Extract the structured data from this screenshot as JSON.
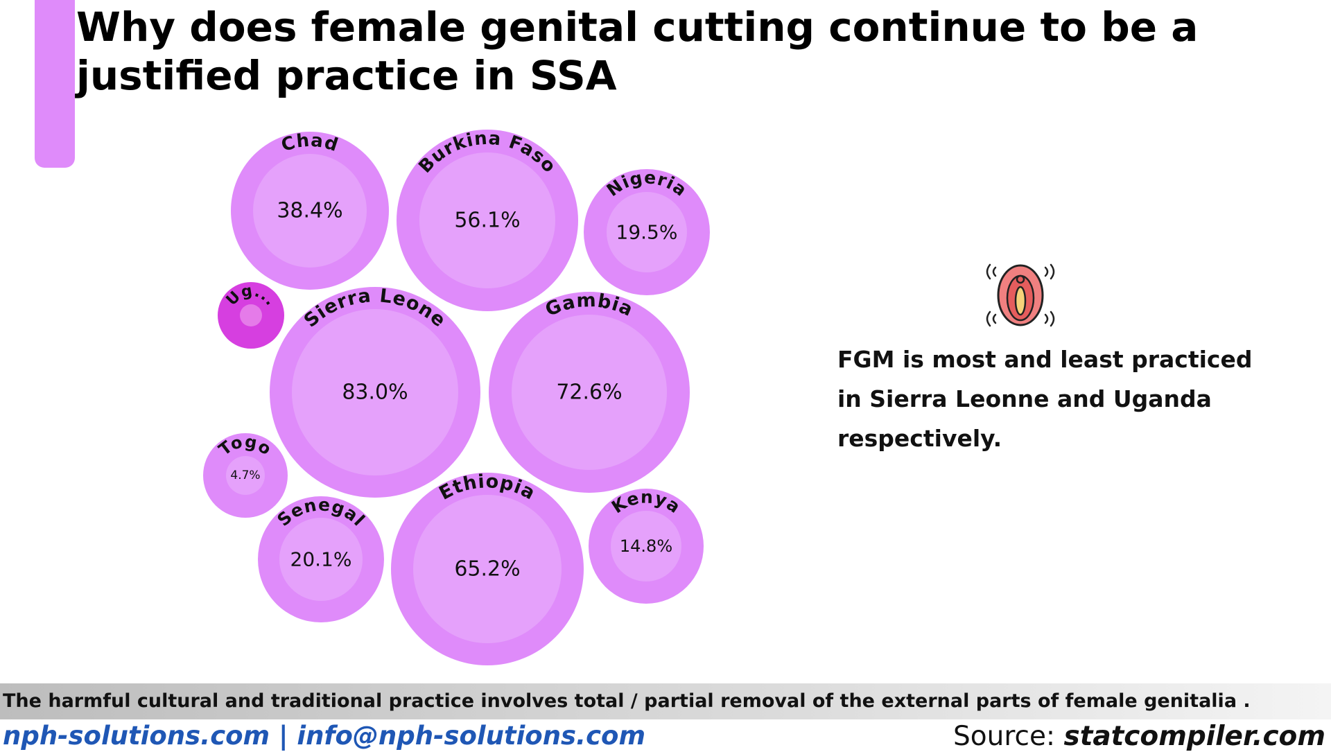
{
  "header": {
    "title": "Why does female genital cutting continue to be a justified practice in SSA"
  },
  "chart_data": {
    "type": "bubble",
    "unit": "%",
    "bubbles": [
      {
        "name": "Chad",
        "label": "Chad",
        "value": 38.4
      },
      {
        "name": "Burkina Faso",
        "label": "Burkina Faso",
        "value": 56.1
      },
      {
        "name": "Nigeria",
        "label": "Nigeria",
        "value": 19.5
      },
      {
        "name": "Uganda",
        "label": "Ug...",
        "value": null
      },
      {
        "name": "Sierra Leone",
        "label": "Sierra Leone",
        "value": 83.0
      },
      {
        "name": "Gambia",
        "label": "Gambia",
        "value": 72.6
      },
      {
        "name": "Togo",
        "label": "Togo",
        "value": 4.7
      },
      {
        "name": "Senegal",
        "label": "Senegal",
        "value": 20.1
      },
      {
        "name": "Ethiopia",
        "label": "Ethiopia",
        "value": 65.2
      },
      {
        "name": "Kenya",
        "label": "Kenya",
        "value": 14.8
      }
    ],
    "colors": {
      "outer": "#df8bfa",
      "inner": "#e5a1fb",
      "highlight_outer": "#d63fe0",
      "highlight_inner": "#e57be9"
    }
  },
  "insight": {
    "icon": "female-anatomy-icon",
    "text": "FGM is most and least practiced in Sierra Leonne and Uganda respectively."
  },
  "footer": {
    "note": "The harmful cultural and traditional practice  involves total / partial removal of the external parts of female genitalia .",
    "contact": "nph-solutions.com | info@nph-solutions.com",
    "source_prefix": "Source: ",
    "source_site": "statcompiler.com"
  }
}
